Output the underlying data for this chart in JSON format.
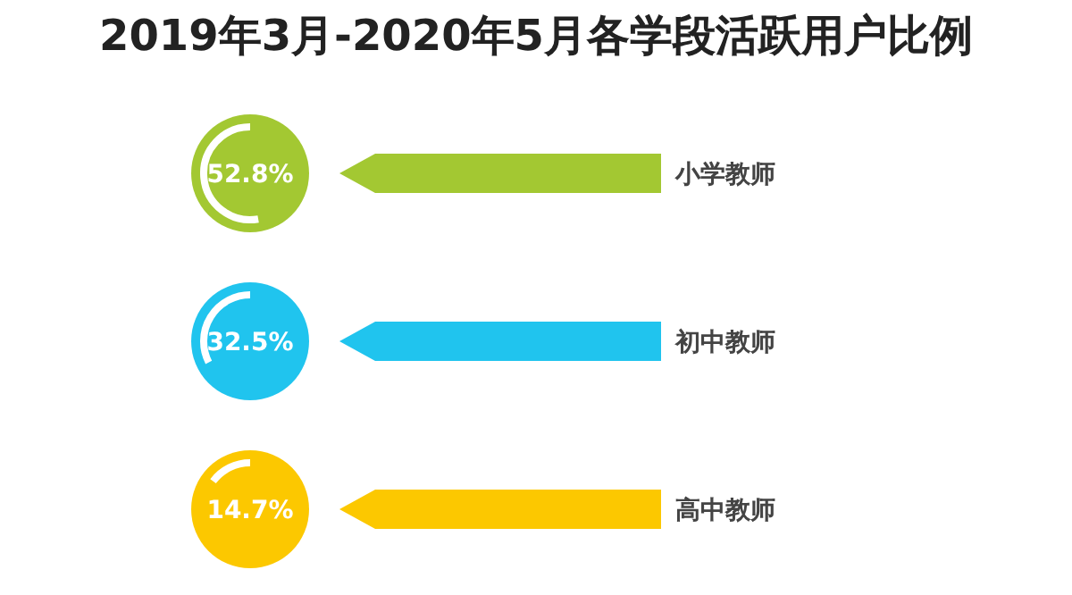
{
  "chart_data": {
    "type": "other",
    "title": "2019年3月-2020年5月各学段活跃用户比例",
    "categories": [
      "小学教师",
      "初中教师",
      "高中教师"
    ],
    "values": [
      52.8,
      32.5,
      14.7
    ],
    "value_labels": [
      "52.8%",
      "32.5%",
      "14.7%"
    ],
    "colors": [
      "#a3c832",
      "#20c4ee",
      "#fcc800"
    ]
  }
}
